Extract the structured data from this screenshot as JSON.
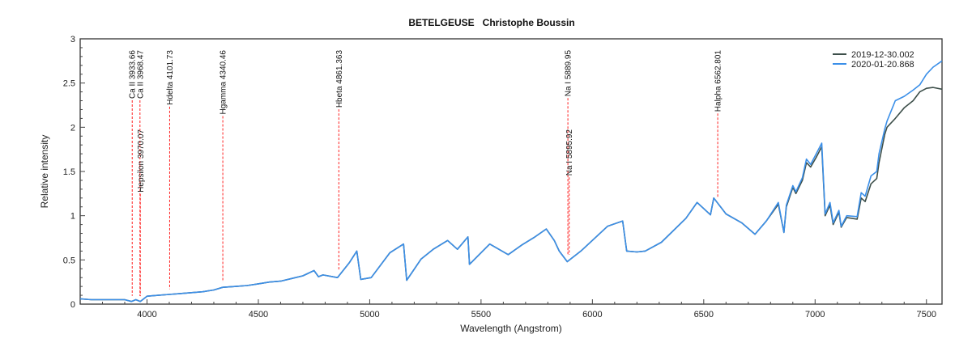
{
  "chart_data": {
    "type": "line",
    "title": "BETELGEUSE   Christophe Boussin",
    "xlabel": "Wavelength (Angstrom)",
    "ylabel": "Relative intensity",
    "xlim": [
      3700,
      7570
    ],
    "ylim": [
      0,
      3
    ],
    "xticks": [
      4000,
      4500,
      5000,
      5500,
      6000,
      6500,
      7000,
      7500
    ],
    "yticks": [
      0,
      0.5,
      1,
      1.5,
      2,
      2.5,
      3
    ],
    "ytick_labels": [
      "0",
      "0.5",
      "1",
      "1.5",
      "2",
      "2.5",
      "3"
    ],
    "grid": false,
    "legend_position": "top-right",
    "x": [
      3700,
      3750,
      3800,
      3850,
      3900,
      3930,
      3950,
      3970,
      4000,
      4050,
      4100,
      4150,
      4200,
      4250,
      4300,
      4340,
      4400,
      4450,
      4500,
      4550,
      4600,
      4650,
      4700,
      4750,
      4770,
      4790,
      4855,
      4909,
      4942,
      4960,
      5007,
      5090,
      5152,
      5166,
      5231,
      5285,
      5350,
      5394,
      5441,
      5448,
      5539,
      5622,
      5684,
      5742,
      5793,
      5829,
      5851,
      5887,
      5948,
      5995,
      6068,
      6136,
      6154,
      6200,
      6237,
      6310,
      6420,
      6470,
      6530,
      6545,
      6600,
      6670,
      6730,
      6781,
      6835,
      6860,
      6871,
      6900,
      6914,
      6943,
      6961,
      6980,
      7005,
      7030,
      7045,
      7067,
      7081,
      7107,
      7117,
      7142,
      7189,
      7207,
      7225,
      7251,
      7277,
      7287,
      7313,
      7323,
      7360,
      7400,
      7440,
      7470,
      7500,
      7530,
      7570
    ],
    "series": [
      {
        "name": "2019-12-30.002",
        "color": "#3d4f4a",
        "values": [
          0.06,
          0.05,
          0.05,
          0.05,
          0.05,
          0.03,
          0.05,
          0.03,
          0.09,
          0.1,
          0.11,
          0.12,
          0.13,
          0.14,
          0.16,
          0.19,
          0.2,
          0.21,
          0.23,
          0.25,
          0.26,
          0.29,
          0.32,
          0.38,
          0.31,
          0.33,
          0.3,
          0.47,
          0.6,
          0.28,
          0.3,
          0.58,
          0.68,
          0.27,
          0.51,
          0.62,
          0.72,
          0.62,
          0.76,
          0.45,
          0.68,
          0.56,
          0.67,
          0.76,
          0.85,
          0.72,
          0.6,
          0.48,
          0.6,
          0.71,
          0.88,
          0.94,
          0.6,
          0.59,
          0.6,
          0.7,
          0.97,
          1.15,
          1.01,
          1.2,
          1.02,
          0.92,
          0.79,
          0.94,
          1.13,
          0.81,
          1.1,
          1.32,
          1.25,
          1.4,
          1.6,
          1.55,
          1.66,
          1.78,
          1.0,
          1.12,
          0.9,
          1.04,
          0.87,
          0.98,
          0.96,
          1.2,
          1.16,
          1.36,
          1.42,
          1.6,
          1.92,
          2.0,
          2.1,
          2.22,
          2.3,
          2.4,
          2.44,
          2.45,
          2.43
        ]
      },
      {
        "name": "2020-01-20.868",
        "color": "#3b8fe8",
        "values": [
          0.06,
          0.05,
          0.05,
          0.05,
          0.05,
          0.03,
          0.05,
          0.03,
          0.09,
          0.1,
          0.11,
          0.12,
          0.13,
          0.14,
          0.16,
          0.19,
          0.2,
          0.21,
          0.23,
          0.25,
          0.26,
          0.29,
          0.32,
          0.38,
          0.31,
          0.33,
          0.3,
          0.47,
          0.6,
          0.28,
          0.3,
          0.58,
          0.68,
          0.27,
          0.51,
          0.62,
          0.72,
          0.62,
          0.76,
          0.45,
          0.68,
          0.56,
          0.67,
          0.76,
          0.85,
          0.72,
          0.6,
          0.48,
          0.6,
          0.71,
          0.88,
          0.94,
          0.6,
          0.59,
          0.6,
          0.7,
          0.97,
          1.15,
          1.01,
          1.2,
          1.02,
          0.92,
          0.79,
          0.94,
          1.15,
          0.81,
          1.12,
          1.34,
          1.27,
          1.43,
          1.64,
          1.58,
          1.7,
          1.82,
          1.02,
          1.15,
          0.92,
          1.06,
          0.88,
          1.0,
          0.99,
          1.26,
          1.22,
          1.45,
          1.5,
          1.7,
          1.98,
          2.07,
          2.3,
          2.35,
          2.42,
          2.48,
          2.6,
          2.68,
          2.75
        ]
      }
    ],
    "annotations": [
      {
        "label": "Ca II 3933.66",
        "x": 3933.66
      },
      {
        "label": "Ca II 3968.47",
        "x": 3968.47
      },
      {
        "label": "Hepsilon 3970.07",
        "x": 3970.07
      },
      {
        "label": "Hdelta 4101.73",
        "x": 4101.73
      },
      {
        "label": "Hgamma 4340.46",
        "x": 4340.46
      },
      {
        "label": "Hbeta 4861.363",
        "x": 4861.363
      },
      {
        "label": "Na I 5889.95",
        "x": 5889.95
      },
      {
        "label": "Na I 5895.92",
        "x": 5895.92
      },
      {
        "label": "Halpha 6562.801",
        "x": 6562.801
      }
    ],
    "annotation_color": "#ff2020"
  }
}
